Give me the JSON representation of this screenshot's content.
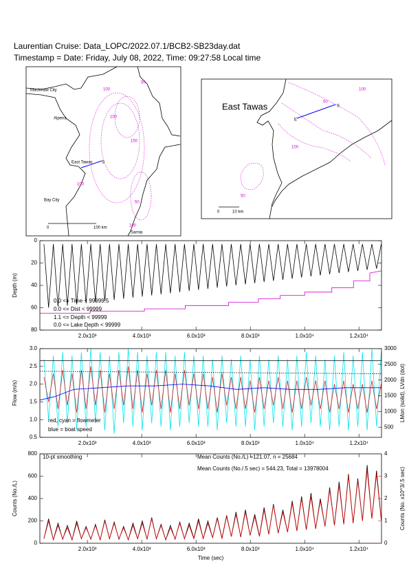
{
  "header": {
    "title": "Laurentian Cruise: Data_LOPC/2022.07.1/BCB2-SB23day.dat",
    "subtitle": "Timestamp = Date: Friday, July 08, 2022, Time: 09:27:58 Local time"
  },
  "maps": [
    {
      "places": [
        "Mackinaw City",
        "Alpena",
        "East Tawas",
        "Bay City",
        "Sarnia"
      ],
      "scale": [
        "0",
        "100 km"
      ],
      "station": "S",
      "contours": [
        "100",
        "50",
        "100",
        "150",
        "100",
        "50",
        "100"
      ]
    },
    {
      "places": [
        "East Tawas"
      ],
      "scale": [
        "0",
        "10 km"
      ],
      "station": [
        "S",
        "E"
      ],
      "contours": [
        "100",
        "50",
        "100",
        "50"
      ]
    }
  ],
  "chart_data": [
    {
      "type": "line",
      "ylabel": "Depth (m)",
      "xlim": [
        250,
        12830
      ],
      "ylim": [
        80,
        0
      ],
      "xticks": [
        {
          "value": 2000,
          "label": "2.0x10³"
        },
        {
          "value": 4000,
          "label": "4.0x10³"
        },
        {
          "value": 6000,
          "label": "6.0x10³"
        },
        {
          "value": 8000,
          "label": "8.0x10³"
        },
        {
          "value": 10000,
          "label": "1.0x10⁴"
        },
        {
          "value": 12000,
          "label": "1.2x10⁴"
        }
      ],
      "yticks": [
        0,
        20,
        40,
        60,
        80
      ],
      "annotations": [
        "0.0 <= Time < 99999.5",
        "0.0 <= Dist < 99999",
        "1.1 <= Depth < 99999",
        "0.0 <= Lake Depth < 99999"
      ],
      "x": [
        400,
        572,
        745,
        917,
        1090,
        1262,
        1435,
        1607,
        1780,
        1952,
        2125,
        2297,
        2470,
        2642,
        2815,
        2987,
        3160,
        3332,
        3505,
        3677,
        3850,
        4022,
        4195,
        4367,
        4540,
        4712,
        4885,
        5057,
        5230,
        5402,
        5575,
        5747,
        5920,
        6092,
        6265,
        6437,
        6610,
        6782,
        6955,
        7127,
        7300,
        7472,
        7645,
        7817,
        7990,
        8162,
        8335,
        8507,
        8680,
        8852,
        9025,
        9197,
        9370,
        9542,
        9715,
        9887,
        10060,
        10232,
        10405,
        10577,
        10750,
        10922,
        11095,
        11267,
        11440,
        11612,
        11785,
        11957,
        12130,
        12302,
        12475,
        12647,
        12820
      ],
      "series": [
        {
          "color": "#000000",
          "values": [
            3,
            60,
            3,
            59,
            3,
            58,
            3,
            57,
            3,
            56,
            3,
            55,
            3,
            54,
            3,
            53,
            3,
            52,
            3,
            51,
            3,
            50,
            3,
            49,
            3,
            48,
            3,
            47,
            3,
            46,
            3,
            45,
            3,
            44,
            3,
            43,
            3,
            42,
            3,
            41,
            3,
            40,
            3,
            39,
            3,
            38,
            3,
            37,
            3,
            36,
            3,
            35,
            3,
            34,
            3,
            33,
            3,
            32,
            3,
            31,
            3,
            30,
            3,
            29,
            3,
            28,
            3,
            27,
            3,
            26,
            3,
            25,
            3
          ]
        },
        {
          "color": "#d000d0",
          "x": [
            250,
            2100,
            2100,
            4100,
            4100,
            5600,
            5600,
            7200,
            7200,
            8300,
            8300,
            9100,
            9100,
            10000,
            10000,
            11000,
            11000,
            11800,
            11800,
            12400,
            12400,
            12830
          ],
          "values": [
            65,
            65,
            63,
            63,
            61,
            61,
            58,
            58,
            55,
            55,
            52,
            52,
            49,
            49,
            46,
            46,
            42,
            42,
            36,
            36,
            29,
            27
          ]
        }
      ]
    },
    {
      "type": "line",
      "ylabel": "Flow (m/s)",
      "y2label": "LMon (solid), LVdn (dot)",
      "xlim": [
        250,
        12830
      ],
      "ylim": [
        0.5,
        3.0
      ],
      "y2lim": [
        175,
        3000
      ],
      "xticks": [
        {
          "value": 2000,
          "label": "2.0x10³"
        },
        {
          "value": 4000,
          "label": "4.0x10³"
        },
        {
          "value": 6000,
          "label": "6.0x10³"
        },
        {
          "value": 8000,
          "label": "8.0x10³"
        },
        {
          "value": 10000,
          "label": "1.0x10⁴"
        },
        {
          "value": 12000,
          "label": "1.2x10⁴"
        }
      ],
      "yticks": [
        0.5,
        {
          "value": 1,
          "label": "1.0"
        },
        1.5,
        {
          "value": 2,
          "label": "2.0"
        },
        2.5,
        {
          "value": 3,
          "label": "3.0"
        }
      ],
      "y2ticks": [
        500,
        1000,
        1500,
        2000,
        2500,
        3000
      ],
      "annotations": [
        "red, cyan = flowmeter",
        "blue = boat speed"
      ],
      "x": [
        400,
        572,
        745,
        917,
        1090,
        1262,
        1435,
        1607,
        1780,
        1952,
        2125,
        2297,
        2470,
        2642,
        2815,
        2987,
        3160,
        3332,
        3505,
        3677,
        3850,
        4022,
        4195,
        4367,
        4540,
        4712,
        4885,
        5057,
        5230,
        5402,
        5575,
        5747,
        5920,
        6092,
        6265,
        6437,
        6610,
        6782,
        6955,
        7127,
        7300,
        7472,
        7645,
        7817,
        7990,
        8162,
        8335,
        8507,
        8680,
        8852,
        9025,
        9197,
        9370,
        9542,
        9715,
        9887,
        10060,
        10232,
        10405,
        10577,
        10750,
        10922,
        11095,
        11267,
        11440,
        11612,
        11785,
        11957,
        12130,
        12302,
        12475,
        12647,
        12820
      ],
      "series": [
        {
          "color": "#00e5ee",
          "values": [
            2.7,
            1.0,
            2.8,
            0.8,
            2.9,
            0.9,
            2.8,
            0.7,
            2.9,
            0.8,
            3.0,
            0.9,
            2.9,
            0.7,
            2.8,
            0.6,
            2.9,
            0.9,
            3.0,
            0.8,
            2.9,
            0.7,
            2.8,
            0.9,
            2.9,
            0.8,
            2.9,
            0.7,
            2.8,
            0.8,
            2.9,
            0.9,
            2.8,
            0.8,
            2.8,
            0.8,
            2.7,
            0.7,
            2.8,
            0.9,
            2.7,
            0.8,
            2.8,
            0.8,
            2.7,
            0.7,
            2.8,
            0.8,
            2.7,
            0.9,
            2.8,
            0.8,
            2.7,
            0.7,
            2.8,
            0.8,
            2.9,
            0.9,
            2.8,
            0.8,
            2.7,
            0.7,
            2.8,
            0.8,
            2.9,
            0.7,
            2.8,
            0.8,
            2.9,
            0.7,
            3.0,
            0.8,
            2.9
          ]
        },
        {
          "color": "#d02020",
          "values": [
            2.2,
            1.5,
            2.3,
            1.3,
            2.4,
            1.4,
            2.3,
            1.2,
            2.4,
            1.3,
            2.5,
            1.4,
            2.4,
            1.2,
            2.3,
            1.3,
            2.4,
            1.4,
            2.5,
            1.3,
            2.4,
            1.2,
            2.3,
            1.4,
            2.4,
            1.3,
            2.4,
            1.2,
            2.3,
            1.3,
            2.4,
            1.4,
            2.3,
            1.3,
            2.3,
            1.3,
            2.2,
            1.2,
            2.3,
            1.4,
            2.2,
            1.3,
            2.2,
            1.3,
            2.1,
            1.2,
            2.2,
            1.3,
            2.1,
            1.4,
            2.2,
            1.3,
            2.1,
            1.2,
            2.1,
            1.3,
            2.2,
            1.4,
            2.1,
            1.3,
            2.1,
            1.2,
            2.0,
            1.3,
            2.1,
            1.2,
            2.0,
            1.3,
            2.0,
            1.2,
            2.1,
            1.3,
            2.0
          ]
        },
        {
          "color": "#0000ff",
          "x": [
            250,
            800,
            1500,
            2500,
            3500,
            4500,
            5500,
            6500,
            7500,
            8500,
            9500,
            10500,
            11500,
            12830
          ],
          "values": [
            1.55,
            1.65,
            1.85,
            1.9,
            1.95,
            1.95,
            2.0,
            1.95,
            1.85,
            1.9,
            1.85,
            1.85,
            1.9,
            1.9
          ]
        },
        {
          "color": "#000000",
          "axis": "y2",
          "x": [
            250,
            12830
          ],
          "values": [
            2620,
            2620
          ]
        },
        {
          "color": "#000000",
          "axis": "y2",
          "style": "dotted",
          "x": [
            250,
            12830
          ],
          "values": [
            2280,
            2200
          ]
        }
      ]
    },
    {
      "type": "line",
      "ylabel": "Counts (No./L)",
      "y2label": "Counts (No. x10^3/.5 sec)",
      "xlabel": "Time (sec)",
      "xlim": [
        250,
        12830
      ],
      "ylim": [
        0,
        800
      ],
      "y2lim": [
        0,
        4
      ],
      "y2color": "#e00000",
      "xticks": [
        {
          "value": 2000,
          "label": "2.0x10³"
        },
        {
          "value": 4000,
          "label": "4.0x10³"
        },
        {
          "value": 6000,
          "label": "6.0x10³"
        },
        {
          "value": 8000,
          "label": "8.0x10³"
        },
        {
          "value": 10000,
          "label": "1.0x10⁴"
        },
        {
          "value": 12000,
          "label": "1.2x10⁴"
        }
      ],
      "yticks": [
        0,
        200,
        400,
        600,
        800
      ],
      "y2ticks": [
        0,
        1,
        2,
        3,
        4
      ],
      "annotations": [
        "10-pt smoothing",
        "Mean Counts (No./L) =121.07, n = 25684",
        "Mean Counts (No./.5 sec) = 544.23, Total = 13978004"
      ],
      "x": [
        400,
        572,
        745,
        917,
        1090,
        1262,
        1435,
        1607,
        1780,
        1952,
        2125,
        2297,
        2470,
        2642,
        2815,
        2987,
        3160,
        3332,
        3505,
        3677,
        3850,
        4022,
        4195,
        4367,
        4540,
        4712,
        4885,
        5057,
        5230,
        5402,
        5575,
        5747,
        5920,
        6092,
        6265,
        6437,
        6610,
        6782,
        6955,
        7127,
        7300,
        7472,
        7645,
        7817,
        7990,
        8162,
        8335,
        8507,
        8680,
        8852,
        9025,
        9197,
        9370,
        9542,
        9715,
        9887,
        10060,
        10232,
        10405,
        10577,
        10750,
        10922,
        11095,
        11267,
        11440,
        11612,
        11785,
        11957,
        12130,
        12302,
        12475,
        12647,
        12820
      ],
      "series": [
        {
          "color": "#000000",
          "values": [
            40,
            220,
            30,
            180,
            35,
            160,
            30,
            200,
            40,
            150,
            35,
            170,
            30,
            210,
            40,
            190,
            35,
            150,
            30,
            180,
            40,
            200,
            35,
            230,
            40,
            170,
            30,
            160,
            35,
            190,
            40,
            180,
            45,
            220,
            40,
            200,
            50,
            230,
            45,
            250,
            60,
            280,
            55,
            300,
            70,
            260,
            65,
            320,
            80,
            350,
            90,
            300,
            100,
            380,
            110,
            420,
            120,
            450,
            130,
            400,
            150,
            500,
            160,
            550,
            170,
            620,
            180,
            580,
            200,
            700,
            220,
            650,
            210
          ]
        },
        {
          "color": "#e00000",
          "axis": "y2",
          "values": [
            0.2,
            1.0,
            0.15,
            0.8,
            0.2,
            0.7,
            0.15,
            0.9,
            0.2,
            0.7,
            0.2,
            0.8,
            0.15,
            1.0,
            0.2,
            0.9,
            0.2,
            0.7,
            0.15,
            0.8,
            0.2,
            0.9,
            0.2,
            1.1,
            0.2,
            0.8,
            0.15,
            0.7,
            0.2,
            0.9,
            0.2,
            0.8,
            0.2,
            1.0,
            0.2,
            0.9,
            0.25,
            1.1,
            0.2,
            1.2,
            0.3,
            1.3,
            0.3,
            1.4,
            0.35,
            1.2,
            0.3,
            1.5,
            0.4,
            1.7,
            0.45,
            1.4,
            0.5,
            1.8,
            0.55,
            2.0,
            0.6,
            2.1,
            0.65,
            1.9,
            0.75,
            2.4,
            0.8,
            2.6,
            0.85,
            3.0,
            0.9,
            2.8,
            1.0,
            3.3,
            1.1,
            3.1,
            1.05
          ]
        }
      ]
    }
  ]
}
